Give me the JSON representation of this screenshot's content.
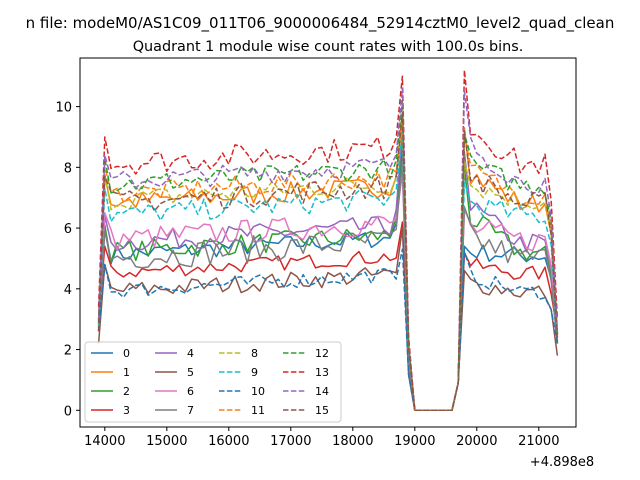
{
  "chart_data": {
    "type": "line",
    "suptitle": "n file: modeM0/AS1C09_011T06_9000006484_52914cztM0_level2_quad_clean",
    "title": "Quadrant 1 module wise count rates with 100.0s bins.",
    "xlabel": "",
    "ylabel": "",
    "x_offset_label": "+4.898e8",
    "xlim": [
      13600,
      21600
    ],
    "ylim": [
      -0.55,
      11.6
    ],
    "xticks": [
      14000,
      15000,
      16000,
      17000,
      18000,
      19000,
      20000,
      21000
    ],
    "xtick_labels": [
      "14000",
      "15000",
      "16000",
      "17000",
      "18000",
      "19000",
      "20000",
      "21000"
    ],
    "yticks": [
      0,
      2,
      4,
      6,
      8,
      10
    ],
    "ytick_labels": [
      "0",
      "2",
      "4",
      "6",
      "8",
      "10"
    ],
    "grid": false,
    "legend_position": "lower-left",
    "legend_columns": 4,
    "x_segments": [
      {
        "start": 13900,
        "end": 18800,
        "step": 100
      },
      {
        "start": 18900,
        "end": 19700,
        "step": 100
      },
      {
        "start": 19800,
        "end": 21300,
        "step": 100
      }
    ],
    "gap_value": 0,
    "series": [
      {
        "name": "0",
        "color": "#1f77b4",
        "style": "solid",
        "base": 5.1,
        "peak": 8.6,
        "p2": 5.4,
        "end": 2.2,
        "noise": 0.3
      },
      {
        "name": "1",
        "color": "#ff7f0e",
        "style": "solid",
        "base": 6.8,
        "peak": 9.8,
        "p2": 9.3,
        "end": 2.4,
        "noise": 0.35
      },
      {
        "name": "2",
        "color": "#2ca02c",
        "style": "solid",
        "base": 5.2,
        "peak": 9.0,
        "p2": 8.0,
        "end": 2.3,
        "noise": 0.35
      },
      {
        "name": "3",
        "color": "#d62728",
        "style": "solid",
        "base": 4.5,
        "peak": 6.2,
        "p2": 5.2,
        "end": 2.6,
        "noise": 0.25
      },
      {
        "name": "4",
        "color": "#9467bd",
        "style": "solid",
        "base": 5.5,
        "peak": 9.2,
        "p2": 8.5,
        "end": 2.4,
        "noise": 0.35
      },
      {
        "name": "5",
        "color": "#8c564b",
        "style": "solid",
        "base": 3.9,
        "peak": 6.0,
        "p2": 4.6,
        "end": 1.8,
        "noise": 0.3
      },
      {
        "name": "6",
        "color": "#e377c2",
        "style": "solid",
        "base": 5.6,
        "peak": 7.8,
        "p2": 6.6,
        "end": 2.4,
        "noise": 0.4
      },
      {
        "name": "7",
        "color": "#7f7f7f",
        "style": "solid",
        "base": 5.0,
        "peak": 8.2,
        "p2": 6.7,
        "end": 2.2,
        "noise": 0.45
      },
      {
        "name": "8",
        "color": "#bcbd22",
        "style": "dashed",
        "base": 6.9,
        "peak": 9.4,
        "p2": 8.2,
        "end": 2.5,
        "noise": 0.35
      },
      {
        "name": "9",
        "color": "#17becf",
        "style": "dashed",
        "base": 6.4,
        "peak": 9.2,
        "p2": 7.5,
        "end": 2.3,
        "noise": 0.35
      },
      {
        "name": "10",
        "color": "#1f77b4",
        "style": "dashed",
        "base": 3.9,
        "peak": 5.3,
        "p2": 5.2,
        "end": 2.2,
        "noise": 0.25
      },
      {
        "name": "11",
        "color": "#ff7f0e",
        "style": "dashed",
        "base": 7.1,
        "peak": 9.6,
        "p2": 9.1,
        "end": 2.5,
        "noise": 0.35
      },
      {
        "name": "12",
        "color": "#2ca02c",
        "style": "dashed",
        "base": 7.4,
        "peak": 10.2,
        "p2": 9.1,
        "end": 2.5,
        "noise": 0.35
      },
      {
        "name": "13",
        "color": "#d62728",
        "style": "dashed",
        "base": 8.1,
        "peak": 11.0,
        "p2": 11.2,
        "end": 3.0,
        "noise": 0.4
      },
      {
        "name": "14",
        "color": "#9467bd",
        "style": "dashed",
        "base": 7.5,
        "peak": 10.6,
        "p2": 10.5,
        "end": 2.6,
        "noise": 0.35
      },
      {
        "name": "15",
        "color": "#8c564b",
        "style": "dashed",
        "base": 6.8,
        "peak": 9.8,
        "p2": 9.2,
        "end": 2.2,
        "noise": 0.4
      }
    ]
  }
}
